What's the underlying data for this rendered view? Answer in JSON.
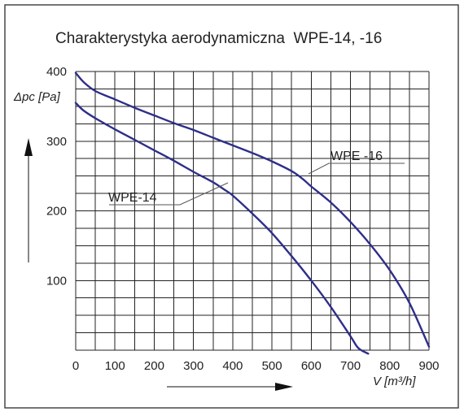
{
  "chart_data": {
    "type": "line",
    "title": "Charakterystyka aerodynamiczna  WPE-14, -16",
    "xlabel": "V [m³/h]",
    "ylabel": "Δpc [Pa]",
    "xlim": [
      0,
      900
    ],
    "ylim": [
      0,
      400
    ],
    "x_ticks": [
      "0",
      "100",
      "200",
      "300",
      "400",
      "500",
      "600",
      "700",
      "800",
      "900"
    ],
    "y_ticks": [
      "100",
      "200",
      "300",
      "400"
    ],
    "grid": true,
    "series": [
      {
        "name": "WPE -16",
        "color": "#2e2e8a",
        "x": [
          0,
          20,
          50,
          100,
          150,
          200,
          250,
          300,
          350,
          400,
          450,
          500,
          550,
          580,
          600,
          650,
          700,
          750,
          800,
          850,
          900
        ],
        "y": [
          398,
          385,
          372,
          360,
          348,
          337,
          326,
          316,
          305,
          294,
          283,
          271,
          257,
          245,
          235,
          212,
          184,
          152,
          115,
          68,
          5
        ]
      },
      {
        "name": "WPE-14",
        "color": "#2e2e8a",
        "x": [
          0,
          20,
          50,
          100,
          150,
          200,
          250,
          300,
          350,
          380,
          400,
          450,
          500,
          550,
          600,
          650,
          700,
          720,
          745
        ],
        "y": [
          355,
          344,
          333,
          317,
          302,
          287,
          272,
          256,
          241,
          230,
          222,
          196,
          168,
          135,
          100,
          62,
          20,
          3,
          -5
        ]
      }
    ]
  }
}
